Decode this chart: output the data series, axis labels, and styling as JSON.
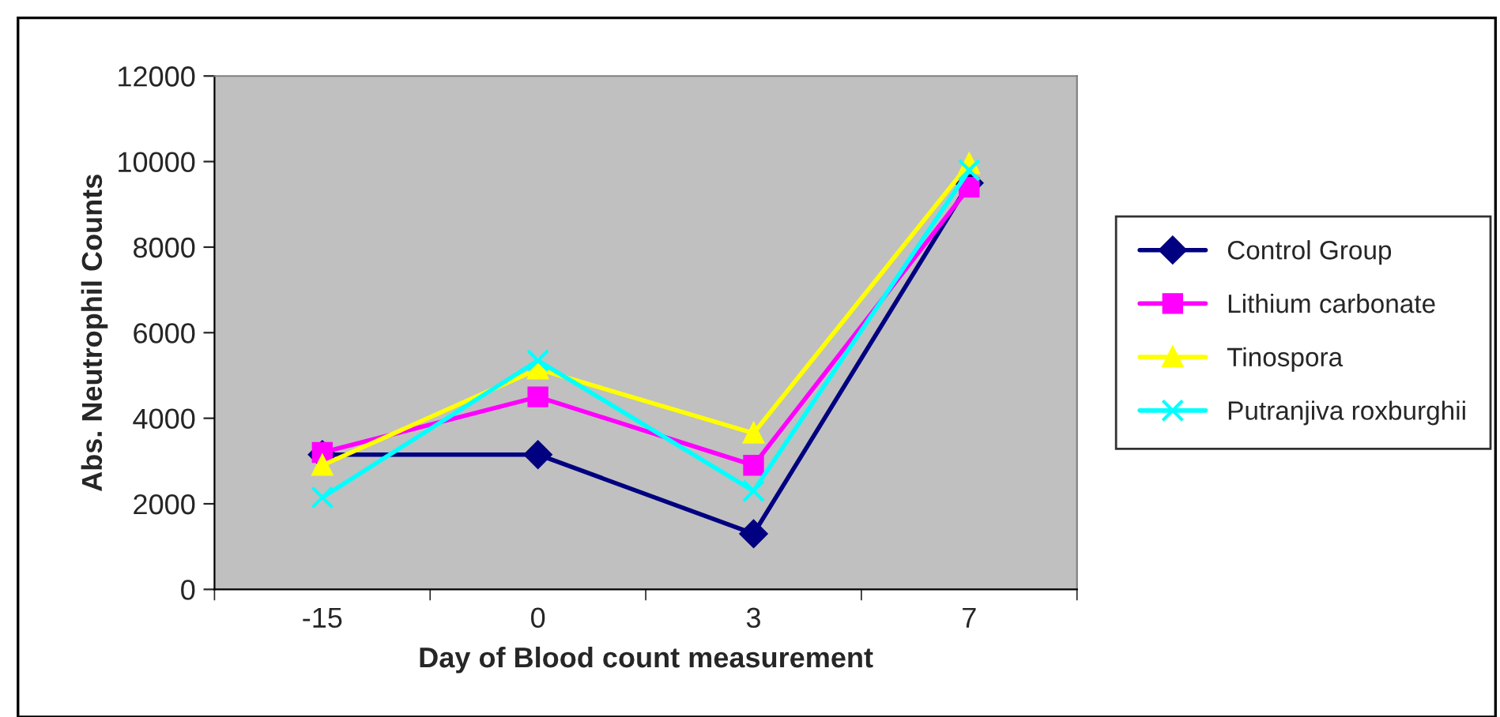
{
  "chart_data": {
    "type": "line",
    "xlabel": "Day of Blood count measurement",
    "ylabel": "Abs. Neutrophil Counts",
    "categories": [
      "-15",
      "0",
      "3",
      "7"
    ],
    "series": [
      {
        "name": "Control Group",
        "color": "#000080",
        "marker": "diamond",
        "values": [
          3150,
          3150,
          1300,
          9500
        ]
      },
      {
        "name": "Lithium carbonate",
        "color": "#ff00ff",
        "marker": "square",
        "values": [
          3200,
          4500,
          2900,
          9400
        ]
      },
      {
        "name": "Tinospora",
        "color": "#ffff00",
        "marker": "triangle",
        "values": [
          2900,
          5150,
          3650,
          9950
        ]
      },
      {
        "name": "Putranjiva roxburghii",
        "color": "#00ffff",
        "marker": "cross",
        "values": [
          2150,
          5350,
          2300,
          9800
        ]
      }
    ],
    "ylim": [
      0,
      12000
    ],
    "yticks": [
      0,
      2000,
      4000,
      6000,
      8000,
      10000,
      12000
    ],
    "grid": false,
    "legend": "right",
    "line_style": "solid"
  }
}
